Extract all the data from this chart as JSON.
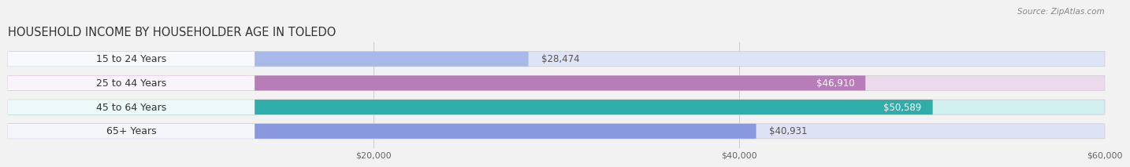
{
  "title": "HOUSEHOLD INCOME BY HOUSEHOLDER AGE IN TOLEDO",
  "source": "Source: ZipAtlas.com",
  "categories": [
    "15 to 24 Years",
    "25 to 44 Years",
    "45 to 64 Years",
    "65+ Years"
  ],
  "values": [
    28474,
    46910,
    50589,
    40931
  ],
  "bar_colors": [
    "#a8b8e8",
    "#b87db8",
    "#2eadaa",
    "#8899dd"
  ],
  "bar_bg_colors": [
    "#dde4f5",
    "#ecdaec",
    "#d0efee",
    "#dde2f5"
  ],
  "value_labels": [
    "$28,474",
    "$46,910",
    "$50,589",
    "$40,931"
  ],
  "value_in_bar": [
    false,
    true,
    true,
    false
  ],
  "xlim": [
    0,
    60000
  ],
  "xticks": [
    20000,
    40000,
    60000
  ],
  "xtick_labels": [
    "$20,000",
    "$40,000",
    "$60,000"
  ],
  "bar_height": 0.62,
  "background_color": "#f2f2f2",
  "title_fontsize": 10.5,
  "source_fontsize": 7.5,
  "label_fontsize": 9,
  "value_fontsize": 8.5
}
